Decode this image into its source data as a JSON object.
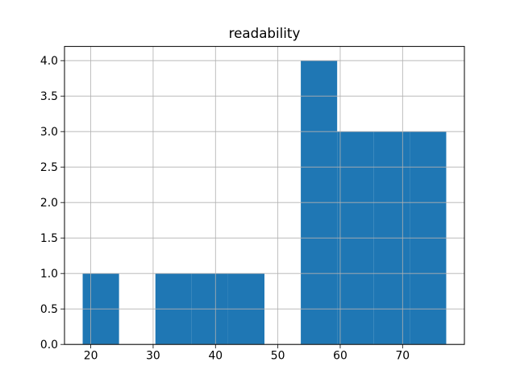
{
  "chart_data": {
    "type": "bar",
    "subtype": "histogram",
    "title": "readability",
    "xlabel": "",
    "ylabel": "",
    "bin_edges": [
      18.7,
      24.53,
      30.36,
      36.19,
      42.02,
      47.85,
      53.68,
      59.51,
      65.34,
      71.17,
      77.0
    ],
    "counts": [
      1,
      0,
      1,
      1,
      1,
      0,
      4,
      3,
      3,
      3
    ],
    "xlim": [
      15.785,
      79.915
    ],
    "ylim": [
      0,
      4.2
    ],
    "x_ticks": [
      20,
      30,
      40,
      50,
      60,
      70
    ],
    "y_ticks": [
      0.0,
      0.5,
      1.0,
      1.5,
      2.0,
      2.5,
      3.0,
      3.5,
      4.0
    ],
    "grid": true,
    "grid_above_bars": true,
    "legend": "none",
    "bar_color": "#1f77b4",
    "grid_color": "#b0b0b0",
    "spine_color": "#000000",
    "background_color": "#ffffff"
  }
}
